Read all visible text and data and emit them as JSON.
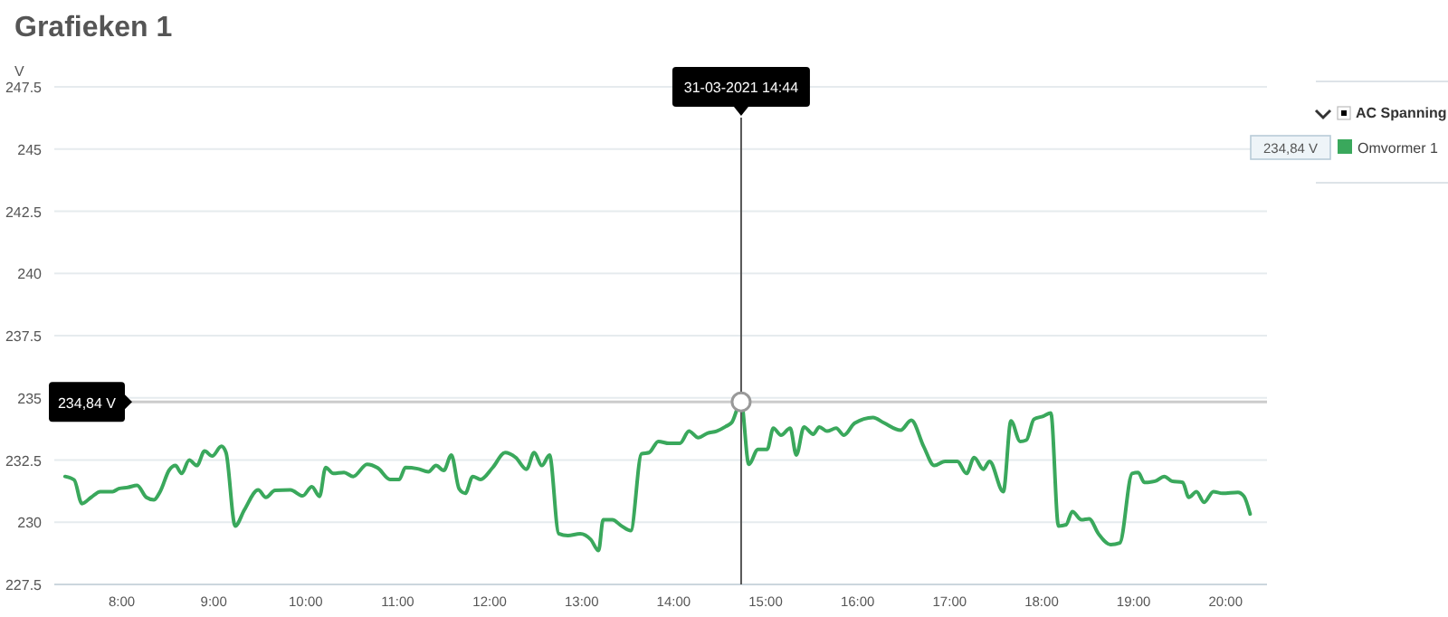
{
  "chart_data": {
    "type": "line",
    "title": "Grafieken 1",
    "ylabel": "V",
    "legend_title": "AC Spanning",
    "legend": "top right",
    "grid": "y",
    "marker": "none",
    "line_style": "solid",
    "xlim": [
      "2021-03-31T07:16",
      "2021-03-31T20:27"
    ],
    "ylim": [
      227.5,
      247.5
    ],
    "xticks": [
      {
        "value": "2021-03-31T08:00",
        "label": "8:00"
      },
      {
        "value": "2021-03-31T09:00",
        "label": "9:00"
      },
      {
        "value": "2021-03-31T10:00",
        "label": "10:00"
      },
      {
        "value": "2021-03-31T11:00",
        "label": "11:00"
      },
      {
        "value": "2021-03-31T12:00",
        "label": "12:00"
      },
      {
        "value": "2021-03-31T13:00",
        "label": "13:00"
      },
      {
        "value": "2021-03-31T14:00",
        "label": "14:00"
      },
      {
        "value": "2021-03-31T15:00",
        "label": "15:00"
      },
      {
        "value": "2021-03-31T16:00",
        "label": "16:00"
      },
      {
        "value": "2021-03-31T17:00",
        "label": "17:00"
      },
      {
        "value": "2021-03-31T18:00",
        "label": "18:00"
      },
      {
        "value": "2021-03-31T19:00",
        "label": "19:00"
      },
      {
        "value": "2021-03-31T20:00",
        "label": "20:00"
      }
    ],
    "yticks": [
      227.5,
      230,
      232.5,
      235,
      237.5,
      240,
      242.5,
      245,
      247.5
    ],
    "x": [
      "2021-03-31T07:23",
      "2021-03-31T07:29",
      "2021-03-31T07:34",
      "2021-03-31T07:40",
      "2021-03-31T07:46",
      "2021-03-31T07:54",
      "2021-03-31T07:58",
      "2021-03-31T08:04",
      "2021-03-31T08:10",
      "2021-03-31T08:16",
      "2021-03-31T08:21",
      "2021-03-31T08:25",
      "2021-03-31T08:31",
      "2021-03-31T08:35",
      "2021-03-31T08:39",
      "2021-03-31T08:44",
      "2021-03-31T08:49",
      "2021-03-31T08:54",
      "2021-03-31T08:59",
      "2021-03-31T09:05",
      "2021-03-31T09:08",
      "2021-03-31T09:14",
      "2021-03-31T09:20",
      "2021-03-31T09:29",
      "2021-03-31T09:34",
      "2021-03-31T09:40",
      "2021-03-31T09:50",
      "2021-03-31T09:58",
      "2021-03-31T10:04",
      "2021-03-31T10:09",
      "2021-03-31T10:13",
      "2021-03-31T10:18",
      "2021-03-31T10:25",
      "2021-03-31T10:31",
      "2021-03-31T10:40",
      "2021-03-31T10:47",
      "2021-03-31T10:55",
      "2021-03-31T11:01",
      "2021-03-31T11:05",
      "2021-03-31T11:13",
      "2021-03-31T11:20",
      "2021-03-31T11:25",
      "2021-03-31T11:30",
      "2021-03-31T11:35",
      "2021-03-31T11:40",
      "2021-03-31T11:44",
      "2021-03-31T11:49",
      "2021-03-31T11:54",
      "2021-03-31T12:02",
      "2021-03-31T12:10",
      "2021-03-31T12:17",
      "2021-03-31T12:24",
      "2021-03-31T12:29",
      "2021-03-31T12:34",
      "2021-03-31T12:39",
      "2021-03-31T12:45",
      "2021-03-31T12:51",
      "2021-03-31T12:59",
      "2021-03-31T13:06",
      "2021-03-31T13:11",
      "2021-03-31T13:14",
      "2021-03-31T13:20",
      "2021-03-31T13:26",
      "2021-03-31T13:32",
      "2021-03-31T13:39",
      "2021-03-31T13:44",
      "2021-03-31T13:50",
      "2021-03-31T13:57",
      "2021-03-31T14:04",
      "2021-03-31T14:10",
      "2021-03-31T14:16",
      "2021-03-31T14:22",
      "2021-03-31T14:28",
      "2021-03-31T14:34",
      "2021-03-31T14:38",
      "2021-03-31T14:44",
      "2021-03-31T14:49",
      "2021-03-31T14:55",
      "2021-03-31T15:01",
      "2021-03-31T15:05",
      "2021-03-31T15:10",
      "2021-03-31T15:16",
      "2021-03-31T15:20",
      "2021-03-31T15:25",
      "2021-03-31T15:31",
      "2021-03-31T15:35",
      "2021-03-31T15:40",
      "2021-03-31T15:46",
      "2021-03-31T15:51",
      "2021-03-31T15:58",
      "2021-03-31T16:10",
      "2021-03-31T16:17",
      "2021-03-31T16:28",
      "2021-03-31T16:35",
      "2021-03-31T16:43",
      "2021-03-31T16:50",
      "2021-03-31T16:57",
      "2021-03-31T17:05",
      "2021-03-31T17:11",
      "2021-03-31T17:16",
      "2021-03-31T17:22",
      "2021-03-31T17:26",
      "2021-03-31T17:35",
      "2021-03-31T17:40",
      "2021-03-31T17:46",
      "2021-03-31T17:50",
      "2021-03-31T17:55",
      "2021-03-31T18:01",
      "2021-03-31T18:06",
      "2021-03-31T18:11",
      "2021-03-31T18:16",
      "2021-03-31T18:20",
      "2021-03-31T18:26",
      "2021-03-31T18:31",
      "2021-03-31T18:37",
      "2021-03-31T18:45",
      "2021-03-31T18:51",
      "2021-03-31T18:59",
      "2021-03-31T19:03",
      "2021-03-31T19:07",
      "2021-03-31T19:14",
      "2021-03-31T19:20",
      "2021-03-31T19:25",
      "2021-03-31T19:32",
      "2021-03-31T19:36",
      "2021-03-31T19:41",
      "2021-03-31T19:46",
      "2021-03-31T19:52",
      "2021-03-31T19:58",
      "2021-03-31T20:08",
      "2021-03-31T20:12",
      "2021-03-31T20:16"
    ],
    "series": [
      {
        "name": "Omvormer 1",
        "color": "#3aa85c",
        "values": [
          231.84,
          231.7,
          230.75,
          231.0,
          231.23,
          231.23,
          231.35,
          231.4,
          231.48,
          231.0,
          230.9,
          231.23,
          232.1,
          232.28,
          231.96,
          232.5,
          232.28,
          232.86,
          232.66,
          233.05,
          232.8,
          229.85,
          230.5,
          231.3,
          231.0,
          231.28,
          231.3,
          231.06,
          231.43,
          231.04,
          232.2,
          231.96,
          232.0,
          231.84,
          232.33,
          232.18,
          231.72,
          231.72,
          232.2,
          232.15,
          232.03,
          232.28,
          232.08,
          232.7,
          231.35,
          231.16,
          231.84,
          231.72,
          232.2,
          232.8,
          232.6,
          232.13,
          232.8,
          232.28,
          232.7,
          229.54,
          229.46,
          229.54,
          229.3,
          228.86,
          230.1,
          230.1,
          229.85,
          229.66,
          232.75,
          232.8,
          233.25,
          233.17,
          233.17,
          233.66,
          233.4,
          233.58,
          233.66,
          233.85,
          234.02,
          234.84,
          232.33,
          232.93,
          232.93,
          233.78,
          233.5,
          233.78,
          232.7,
          233.83,
          233.54,
          233.83,
          233.66,
          233.78,
          233.5,
          233.98,
          234.21,
          234.0,
          233.7,
          234.1,
          233.05,
          232.28,
          232.45,
          232.45,
          231.96,
          232.6,
          232.13,
          232.45,
          231.23,
          234.07,
          233.25,
          233.3,
          234.14,
          234.26,
          234.39,
          229.85,
          229.9,
          230.43,
          230.1,
          230.14,
          229.54,
          229.1,
          229.17,
          231.96,
          232.0,
          231.6,
          231.65,
          231.84,
          231.65,
          231.6,
          231.0,
          231.23,
          230.8,
          231.23,
          231.16,
          231.2,
          231.04,
          230.33
        ]
      }
    ],
    "ref_lines": [
      {
        "axis": "x",
        "value": "2021-03-31T14:44",
        "label": "31-03-2021 14:44",
        "color": "#555555"
      },
      {
        "axis": "y",
        "value": 234.84,
        "label": "234,84 V",
        "color": "#cccccc"
      }
    ],
    "annotations": [
      "234,84 V"
    ]
  }
}
